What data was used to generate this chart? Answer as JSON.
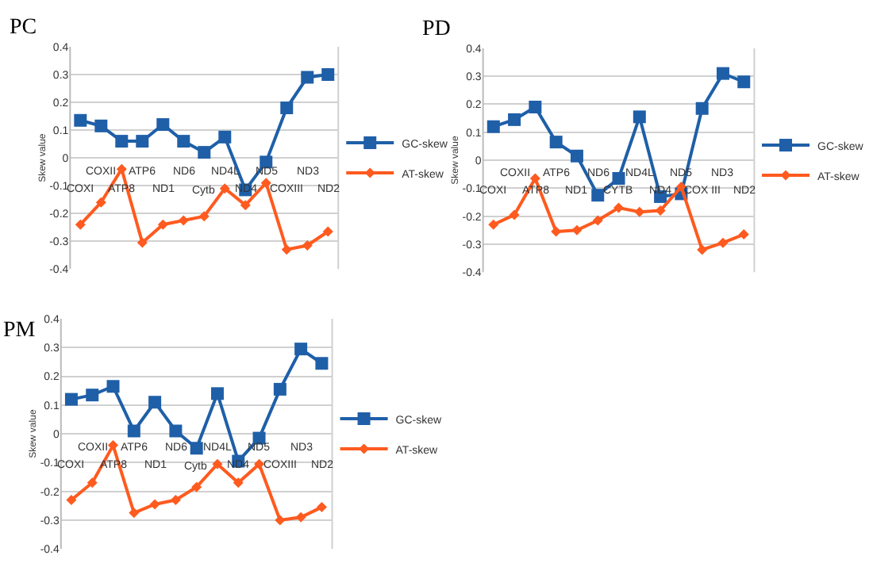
{
  "chart_data": [
    {
      "type": "line",
      "title": "PC",
      "ylabel": "Skew value",
      "categories": [
        "COXI",
        "COXII",
        "ATP8",
        "ATP6",
        "ND1",
        "ND6",
        "Cytb",
        "ND4L",
        "ND4",
        "ND5",
        "COXIII",
        "ND3",
        "ND2"
      ],
      "series": [
        {
          "name": "GC-skew",
          "color": "#1f5fa8",
          "marker": "square",
          "values": [
            0.135,
            0.115,
            0.06,
            0.06,
            0.12,
            0.06,
            0.02,
            0.075,
            -0.115,
            -0.015,
            0.18,
            0.29,
            0.3
          ]
        },
        {
          "name": "AT-skew",
          "color": "#ff5a1f",
          "marker": "diamond",
          "values": [
            -0.24,
            -0.16,
            -0.04,
            -0.305,
            -0.24,
            -0.225,
            -0.21,
            -0.11,
            -0.17,
            -0.09,
            -0.33,
            -0.315,
            -0.265
          ]
        }
      ],
      "ylim": [
        -0.4,
        0.4
      ],
      "yticks": [
        -0.4,
        -0.3,
        -0.2,
        -0.1,
        0,
        0.1,
        0.2,
        0.3,
        0.4
      ],
      "grid": "y",
      "legend": "right"
    },
    {
      "type": "line",
      "title": "PD",
      "ylabel": "Skew value",
      "categories": [
        "COXI",
        "COXII",
        "ATP8",
        "ATP6",
        "ND1",
        "ND6",
        "CYTB",
        "ND4L",
        "ND4",
        "ND5",
        "COX III",
        "ND3",
        "ND2"
      ],
      "series": [
        {
          "name": "GC-skew",
          "color": "#1f5fa8",
          "marker": "square",
          "values": [
            0.12,
            0.145,
            0.19,
            0.065,
            0.015,
            -0.125,
            -0.065,
            0.155,
            -0.13,
            -0.12,
            0.185,
            0.31,
            0.28
          ]
        },
        {
          "name": "AT-skew",
          "color": "#ff5a1f",
          "marker": "diamond",
          "values": [
            -0.23,
            -0.195,
            -0.065,
            -0.255,
            -0.25,
            -0.215,
            -0.17,
            -0.185,
            -0.18,
            -0.095,
            -0.32,
            -0.295,
            -0.265
          ]
        }
      ],
      "ylim": [
        -0.4,
        0.4
      ],
      "yticks": [
        -0.4,
        -0.3,
        -0.2,
        -0.1,
        0,
        0.1,
        0.2,
        0.3,
        0.4
      ],
      "grid": "y",
      "legend": "right"
    },
    {
      "type": "line",
      "title": "PM",
      "ylabel": "Skew value",
      "categories": [
        "COXI",
        "COXII",
        "ATP8",
        "ATP6",
        "ND1",
        "ND6",
        "Cytb",
        "ND4L",
        "ND4",
        "ND5",
        "COXIII",
        "ND3",
        "ND2"
      ],
      "series": [
        {
          "name": "GC-skew",
          "color": "#1f5fa8",
          "marker": "square",
          "values": [
            0.12,
            0.135,
            0.165,
            0.01,
            0.11,
            0.01,
            -0.05,
            0.14,
            -0.095,
            -0.015,
            0.155,
            0.295,
            0.245
          ]
        },
        {
          "name": "AT-skew",
          "color": "#ff5a1f",
          "marker": "diamond",
          "values": [
            -0.23,
            -0.17,
            -0.04,
            -0.275,
            -0.245,
            -0.23,
            -0.185,
            -0.105,
            -0.17,
            -0.105,
            -0.3,
            -0.29,
            -0.255
          ]
        }
      ],
      "ylim": [
        -0.4,
        0.4
      ],
      "yticks": [
        -0.4,
        -0.3,
        -0.2,
        -0.1,
        0,
        0.1,
        0.2,
        0.3,
        0.4
      ],
      "grid": "y",
      "legend": "right"
    }
  ]
}
